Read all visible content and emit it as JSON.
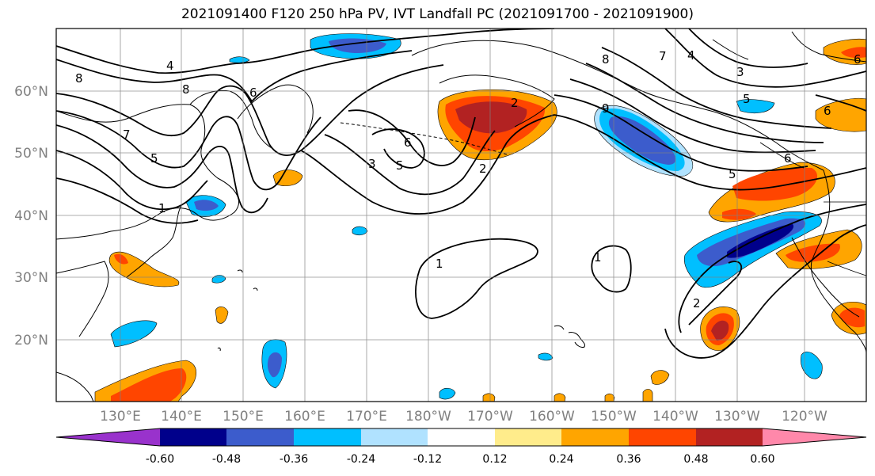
{
  "title": "2021091400 F120 250 hPa PV, IVT Landfall PC (2021091700 - 2021091900)",
  "map": {
    "lat_ticks": [
      "60°N",
      "50°N",
      "40°N",
      "30°N",
      "20°N"
    ],
    "lon_ticks": [
      "130°E",
      "140°E",
      "150°E",
      "160°E",
      "170°E",
      "180°W",
      "170°W",
      "160°W",
      "150°W",
      "140°W",
      "130°W",
      "120°W"
    ],
    "tick_label_color": "#808080",
    "gridline_color": "#808080"
  },
  "contours": {
    "color": "#000000",
    "labels": [
      {
        "text": "4"
      },
      {
        "text": "8"
      },
      {
        "text": "8"
      },
      {
        "text": "6"
      },
      {
        "text": "7"
      },
      {
        "text": "5"
      },
      {
        "text": "1"
      },
      {
        "text": "3"
      },
      {
        "text": "5"
      },
      {
        "text": "6"
      },
      {
        "text": "2"
      },
      {
        "text": "2"
      },
      {
        "text": "8"
      },
      {
        "text": "7"
      },
      {
        "text": "4"
      },
      {
        "text": "3"
      },
      {
        "text": "5"
      },
      {
        "text": "6"
      },
      {
        "text": "6"
      },
      {
        "text": "5"
      },
      {
        "text": "9"
      },
      {
        "text": "6"
      },
      {
        "text": "1"
      },
      {
        "text": "1"
      },
      {
        "text": "2"
      }
    ]
  },
  "colorbar": {
    "levels": [
      "-0.60",
      "-0.48",
      "-0.36",
      "-0.24",
      "-0.12",
      "0.12",
      "0.24",
      "0.36",
      "0.48",
      "0.60"
    ],
    "colors": [
      "#9932cc",
      "#00008b",
      "#3c5ccc",
      "#00bfff",
      "#b0e2ff",
      "#ffffff",
      "#ffec8b",
      "#ffa500",
      "#ff4500",
      "#b22222",
      "#ff88aa"
    ]
  }
}
